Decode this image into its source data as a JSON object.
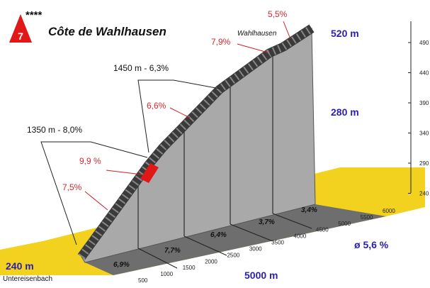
{
  "header": {
    "rank": "7",
    "stars": "****",
    "name": "Côte de Wahlhausen"
  },
  "summit": {
    "place": "Wahlhausen",
    "last_gradient": "5,5%",
    "gradient_before": "7,9%",
    "altitude": "520 m"
  },
  "sections": {
    "upper": "1450 m - 6,3%",
    "upper_gradient": "6,6%",
    "lower": "1350 m - 8,0%",
    "steepest": "9,9 %",
    "lower_gradient": "7,5%"
  },
  "elevation_gain": "280 m",
  "altitude_ticks": [
    "490",
    "440",
    "390",
    "340",
    "290",
    "240"
  ],
  "segment_gradients": [
    "6,9%",
    "7,7%",
    "6,4%",
    "3,7%",
    "3,4%"
  ],
  "distance_ticks": [
    "500",
    "1000",
    "1500",
    "2000",
    "2500",
    "3000",
    "3500",
    "4000",
    "4500",
    "5000",
    "5500",
    "6000"
  ],
  "start": {
    "altitude": "240 m",
    "place": "Untereisenbach"
  },
  "length": "5000 m",
  "average": "ø 5,6 %"
}
